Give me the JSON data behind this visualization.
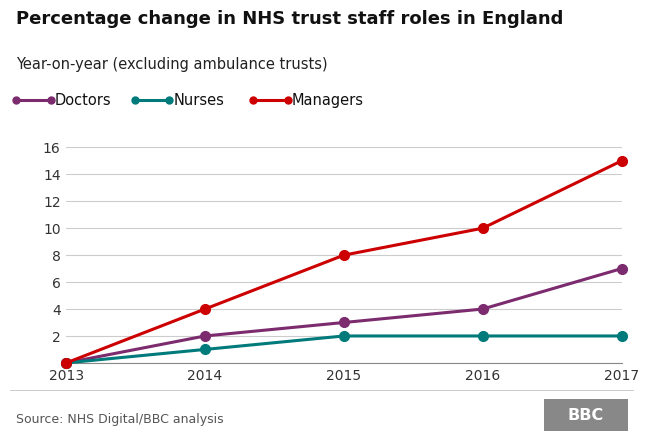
{
  "title": "Percentage change in NHS trust staff roles in England",
  "subtitle": "Year-on-year (excluding ambulance trusts)",
  "source": "Source: NHS Digital/BBC analysis",
  "years": [
    2013,
    2014,
    2015,
    2016,
    2017
  ],
  "series": {
    "Doctors": {
      "values": [
        0,
        2,
        3,
        4,
        7
      ],
      "color": "#7b2b6e"
    },
    "Nurses": {
      "values": [
        0,
        1,
        2,
        2,
        2
      ],
      "color": "#007a7a"
    },
    "Managers": {
      "values": [
        0,
        4,
        8,
        10,
        15
      ],
      "color": "#cc0000"
    }
  },
  "ylim": [
    0,
    16
  ],
  "yticks": [
    0,
    2,
    4,
    6,
    8,
    10,
    12,
    14,
    16
  ],
  "xlim": [
    2013,
    2017
  ],
  "xticks": [
    2013,
    2014,
    2015,
    2016,
    2017
  ],
  "background_color": "#ffffff",
  "grid_color": "#cccccc",
  "title_fontsize": 13,
  "subtitle_fontsize": 10.5,
  "legend_fontsize": 10.5,
  "tick_fontsize": 10,
  "source_fontsize": 9,
  "linewidth": 2.2,
  "markersize": 7
}
